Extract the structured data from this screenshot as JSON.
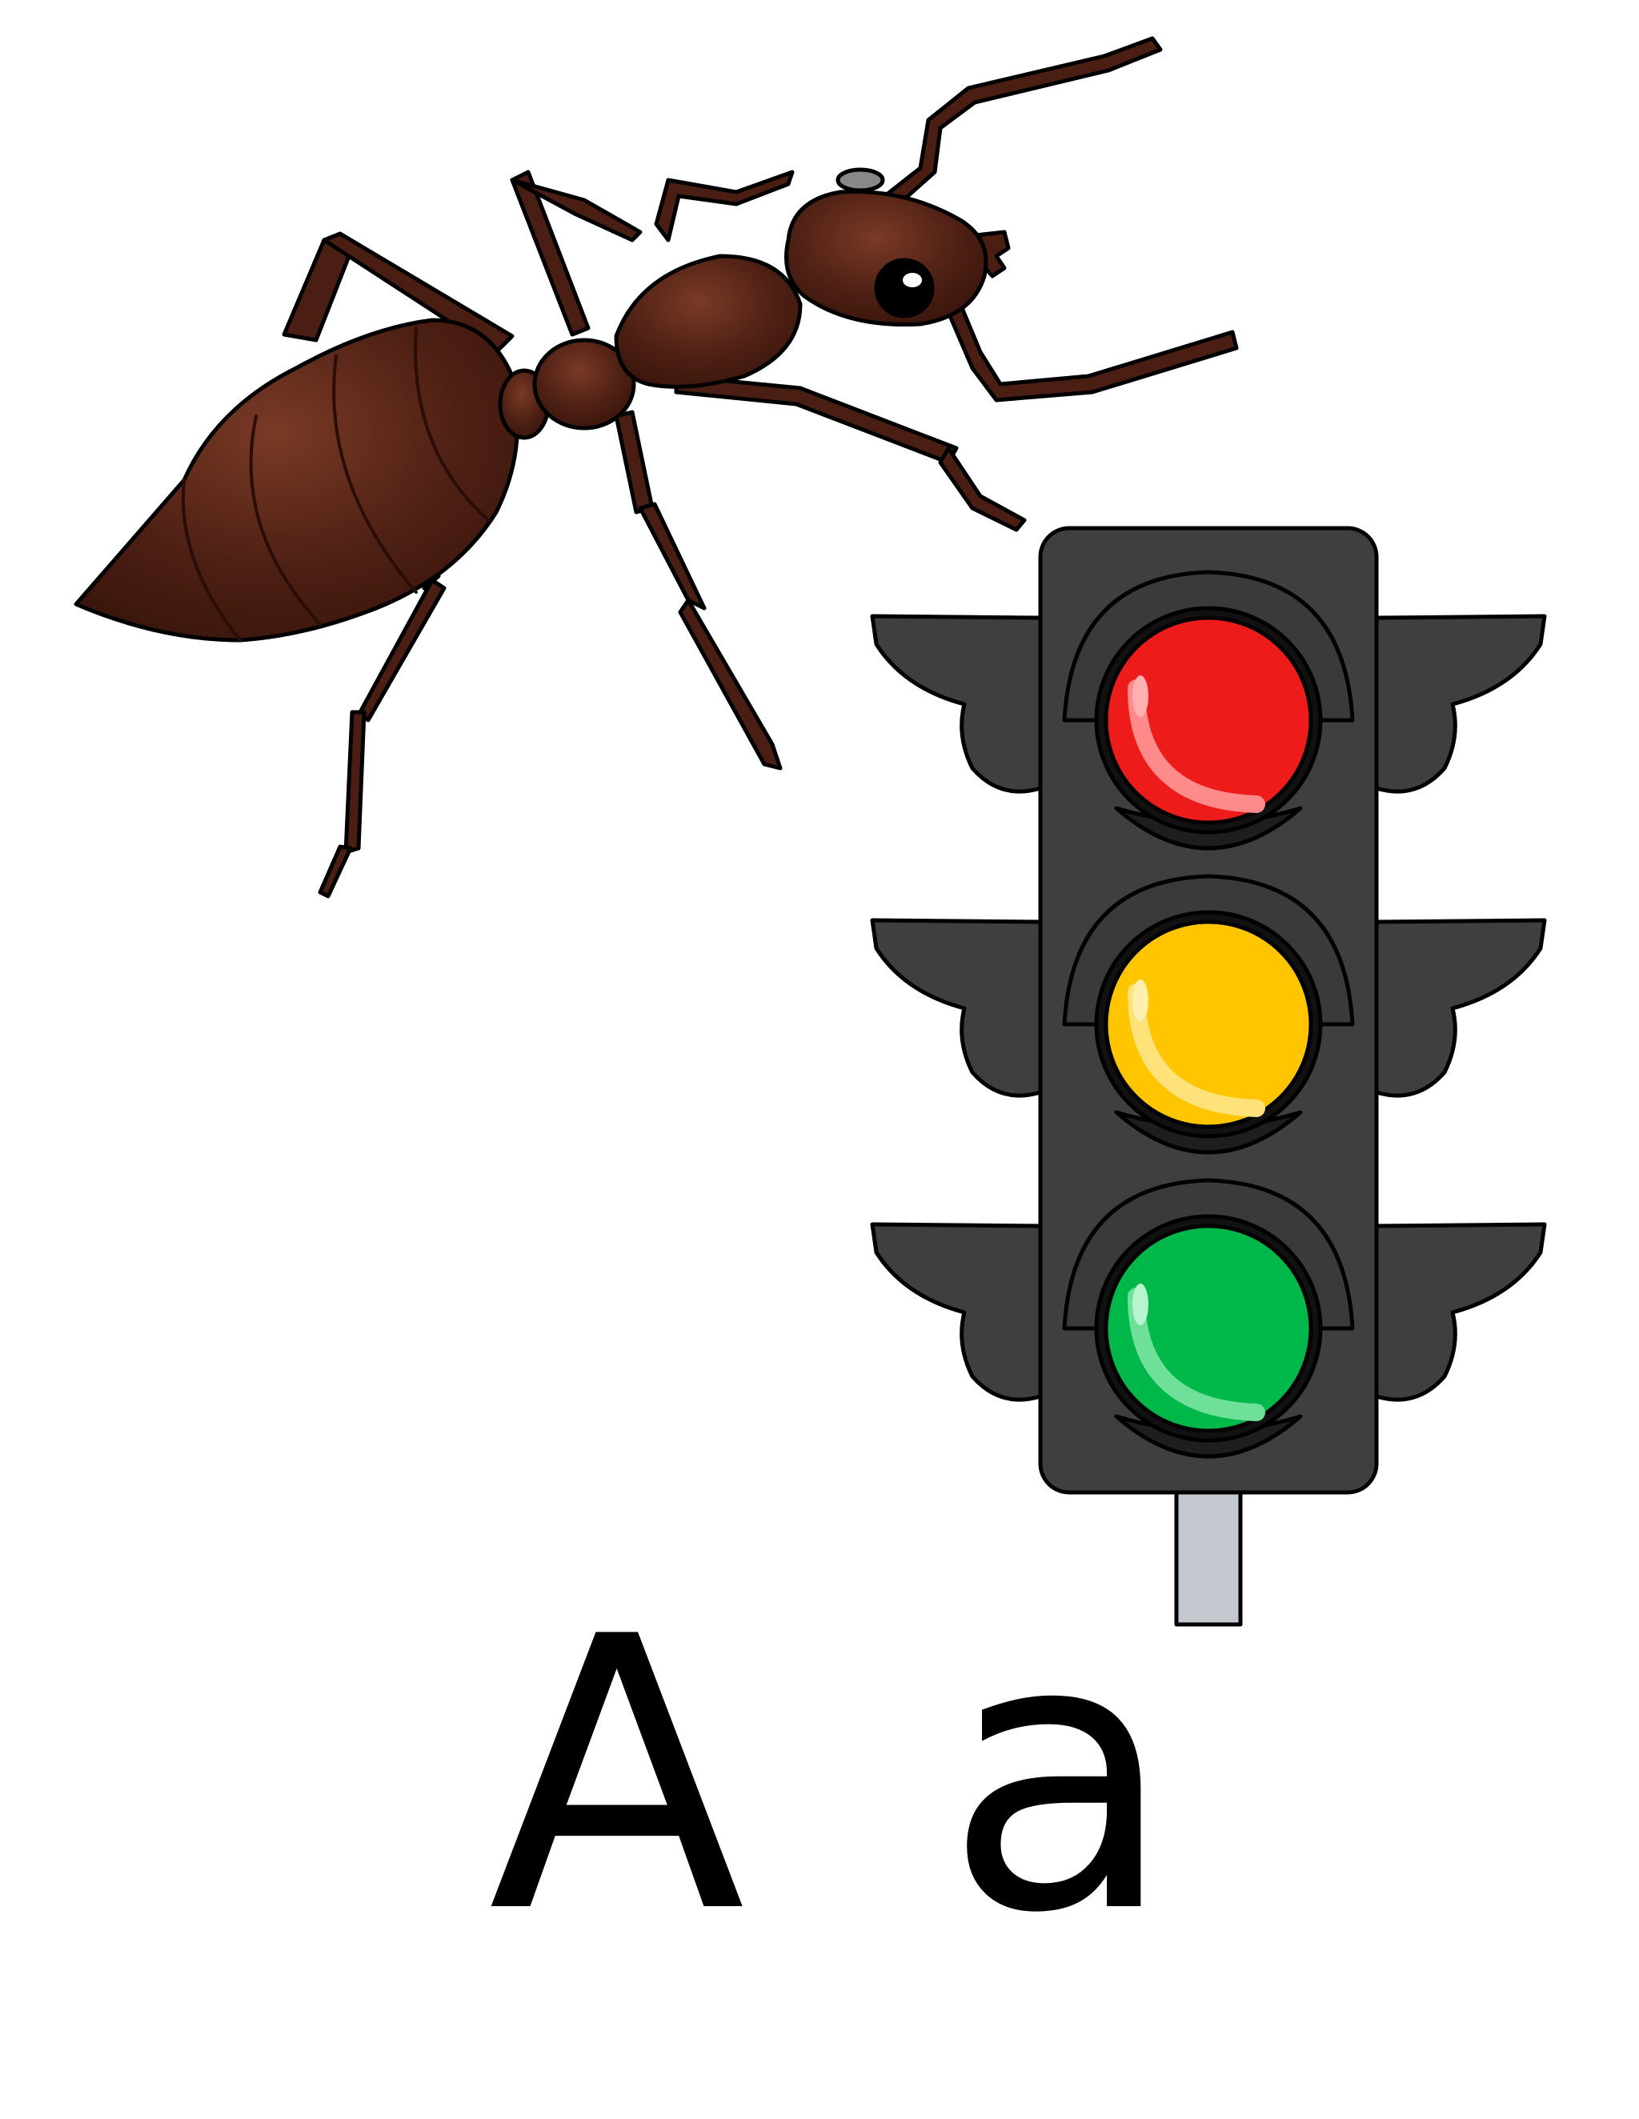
{
  "letters": {
    "uppercase": "A",
    "lowercase": "a"
  },
  "illustrations": {
    "ant": {
      "icon": "ant-icon",
      "body_color": "#4a1e12",
      "outline_color": "#000000"
    },
    "traffic_light": {
      "icon": "traffic-light-icon",
      "housing_color": "#3f3f3f",
      "pole_color": "#c4c8cf",
      "lamps": [
        {
          "name": "red",
          "color": "#ee1b1b"
        },
        {
          "name": "yellow",
          "color": "#ffc600"
        },
        {
          "name": "green",
          "color": "#00b84a"
        }
      ]
    }
  }
}
